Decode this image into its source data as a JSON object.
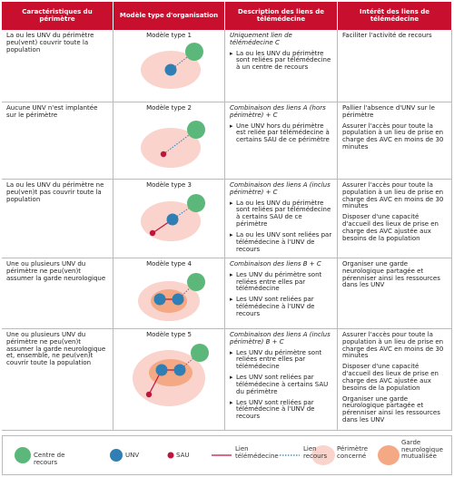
{
  "header": {
    "columns": [
      "Caractéristiques du périmètre",
      "Modèle type d'organisation",
      "Description des liens de télémédecine",
      "Intérêt des liens de télémédecine"
    ]
  },
  "rows": [
    {
      "characteristics": "La ou les UNV du périmètre peu(vent) couvrir toute la population",
      "model": "Modèle type 1",
      "description": {
        "intro": "Uniquement lien de télémédecine C",
        "bullets": [
          "La ou les UNV du périmètre sont reliées par télémédecine à un centre de recours"
        ]
      },
      "interest": [
        "Faciliter l'activité de recours"
      ]
    },
    {
      "characteristics": "Aucune UNV n'est implantée sur le périmètre",
      "model": "Modèle type 2",
      "description": {
        "intro": "Combinaison des liens A (hors périmètre) + C",
        "bullets": [
          "Une UNV hors du périmètre est reliée par télémédecine à certains SAU de ce périmètre"
        ]
      },
      "interest": [
        "Pallier l'absence d'UNV sur le périmètre",
        "Assurer l'accès pour toute la population à un lieu de prise en charge des AVC en moins de 30 minutes"
      ]
    },
    {
      "characteristics": "La ou les UNV du périmètre ne peu(ven)t pas couvrir toute la population",
      "model": "Modèle type 3",
      "description": {
        "intro": "Combinaison des liens A (inclus périmètre) + C",
        "bullets": [
          "La ou les UNV du périmètre sont reliées par télémédecine à certains SAU de ce périmètre",
          "La ou les UNV sont reliées par télémédecine à l'UNV de recours"
        ]
      },
      "interest": [
        "Assurer l'accès pour toute la population à un lieu de prise en charge des AVC en moins de 30 minutes",
        "Disposer d'une capacité d'accueil des lieux de prise en charge des AVC ajustée aux besoins de la population"
      ]
    },
    {
      "characteristics": "Une ou plusieurs UNV du périmètre ne peu(ven)t assumer la garde neurologique",
      "model": "Modèle type 4",
      "description": {
        "intro": "Combinaison des liens B + C",
        "bullets": [
          "Les UNV du périmètre sont reliées entre elles par télémédecine",
          "Les UNV sont reliées par télémédecine à l'UNV de recours"
        ]
      },
      "interest": [
        "Organiser une garde neurologique partagée et pérenniser ainsi les ressources dans les UNV"
      ]
    },
    {
      "characteristics": "Une ou plusieurs UNV du périmètre ne peu(ven)t assumer la garde neurologique et, ensemble, ne peu(ven)t couvrir toute la population",
      "model": "Modèle type 5",
      "description": {
        "intro": "Combinaison des liens A (inclus périmètre) B + C",
        "bullets": [
          "Les UNV du périmètre sont reliées entre elles par télémédecine",
          "Les UNV sont reliées par télémédecine à certains SAU du périmètre",
          "Les UNV sont reliées par télémédecine à l'UNV de recours"
        ]
      },
      "interest": [
        "Assurer l'accès pour toute la population à un lieu de prise en charge des AVC en moins de 30 minutes",
        "Disposer d'une capacité d'accueil des lieux de prise en charge des AVC ajustée aux besoins de la population",
        "Organiser une garde neurologique partagée et pérenniser ainsi les ressources dans les UNV"
      ]
    }
  ],
  "legend": [
    "Centre de recours",
    "UNV",
    "SAU",
    "Lien télémédecine",
    "Lien recours",
    "Périmètre concerné",
    "Garde neurologique mutualisée"
  ]
}
